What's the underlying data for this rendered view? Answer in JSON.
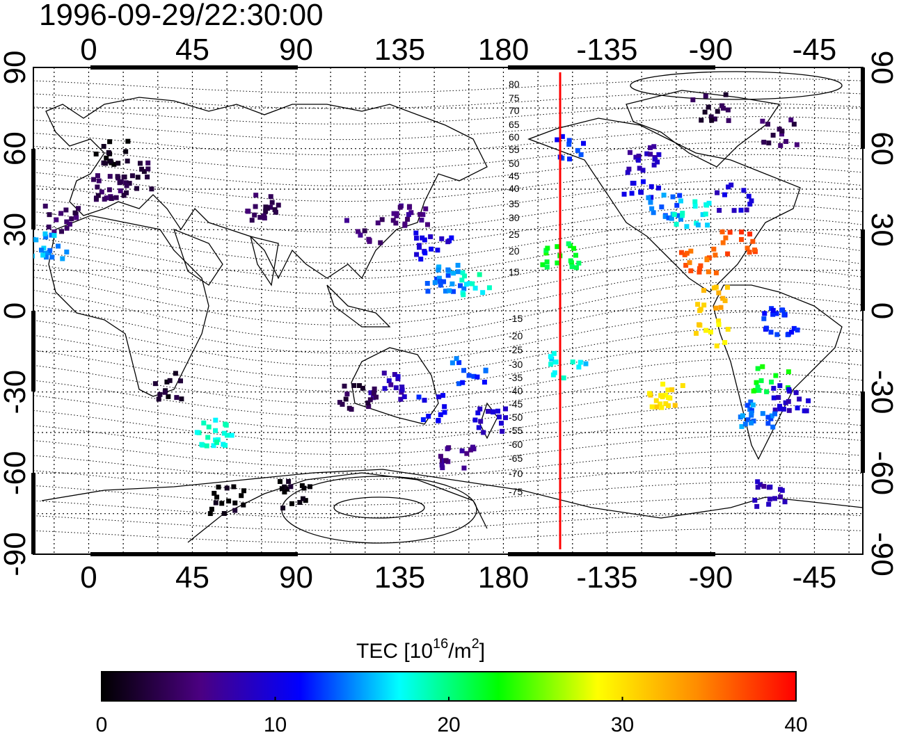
{
  "title": "1996-09-29/22:30:00",
  "map": {
    "type": "TEC map (equirectangular world)",
    "top_lon_ticks": [
      "0",
      "45",
      "90",
      "135",
      "180",
      "-135",
      "-90",
      "-45"
    ],
    "bottom_lon_ticks": [
      "0",
      "45",
      "90",
      "135",
      "180",
      "-135",
      "-90",
      "-45"
    ],
    "left_lat_ticks": [
      "90",
      "60",
      "30",
      "0",
      "-30",
      "-60",
      "-90"
    ],
    "right_lat_ticks": [
      "90",
      "60",
      "30",
      "0",
      "-30",
      "-60",
      "-90"
    ],
    "magnetic_lat_labels": [
      "80",
      "75",
      "70",
      "65",
      "60",
      "55",
      "50",
      "45",
      "40",
      "35",
      "30",
      "25",
      "20",
      "15",
      "-15",
      "-20",
      "-25",
      "-30",
      "-35",
      "-40",
      "-45",
      "-50",
      "-55",
      "-60",
      "-65",
      "-70",
      "-75"
    ],
    "terminator_line_color": "#ff0000",
    "lon_range": [
      -24,
      336
    ],
    "lat_range": [
      -90,
      90
    ]
  },
  "colorbar": {
    "label": "TEC  [10",
    "label_sup": "16",
    "label_mid": "/m",
    "label_sup2": "2",
    "label_end": "]",
    "ticks": [
      "0",
      "10",
      "20",
      "30",
      "40"
    ],
    "range": [
      0,
      40
    ],
    "stops": [
      "#000000",
      "#4b0082",
      "#0000ff",
      "#00ffff",
      "#00ff00",
      "#ffff00",
      "#ff8c00",
      "#ff0000"
    ]
  },
  "tec_clusters": [
    {
      "lon": 10,
      "lat": 58,
      "tec": 1
    },
    {
      "lon": 20,
      "lat": 50,
      "tec": 3
    },
    {
      "lon": 10,
      "lat": 46,
      "tec": 4
    },
    {
      "lon": -12,
      "lat": 34,
      "tec": 4
    },
    {
      "lon": -17,
      "lat": 24,
      "tec": 15
    },
    {
      "lon": 75,
      "lat": 38,
      "tec": 4
    },
    {
      "lon": 120,
      "lat": 30,
      "tec": 5
    },
    {
      "lon": 140,
      "lat": 36,
      "tec": 6
    },
    {
      "lon": 150,
      "lat": 24,
      "tec": 10
    },
    {
      "lon": 155,
      "lat": 12,
      "tec": 14
    },
    {
      "lon": 168,
      "lat": 10,
      "tec": 18
    },
    {
      "lon": 205,
      "lat": 20,
      "tec": 22
    },
    {
      "lon": 210,
      "lat": 60,
      "tec": 12
    },
    {
      "lon": 240,
      "lat": 56,
      "tec": 8
    },
    {
      "lon": 240,
      "lat": 46,
      "tec": 11
    },
    {
      "lon": 250,
      "lat": 38,
      "tec": 14
    },
    {
      "lon": 262,
      "lat": 36,
      "tec": 17
    },
    {
      "lon": 280,
      "lat": 42,
      "tec": 9
    },
    {
      "lon": 282,
      "lat": 26,
      "tec": 37
    },
    {
      "lon": 265,
      "lat": 18,
      "tec": 36
    },
    {
      "lon": 272,
      "lat": 4,
      "tec": 32
    },
    {
      "lon": 270,
      "lat": -8,
      "tec": 30
    },
    {
      "lon": 300,
      "lat": -4,
      "tec": 12
    },
    {
      "lon": 296,
      "lat": -25,
      "tec": 22
    },
    {
      "lon": 305,
      "lat": -32,
      "tec": 9
    },
    {
      "lon": 290,
      "lat": -38,
      "tec": 14
    },
    {
      "lon": 250,
      "lat": -32,
      "tec": 30
    },
    {
      "lon": 208,
      "lat": -20,
      "tec": 17
    },
    {
      "lon": 165,
      "lat": -22,
      "tec": 13
    },
    {
      "lon": 175,
      "lat": -40,
      "tec": 9
    },
    {
      "lon": 150,
      "lat": -36,
      "tec": 11
    },
    {
      "lon": 130,
      "lat": -28,
      "tec": 8
    },
    {
      "lon": 117,
      "lat": -32,
      "tec": 3
    },
    {
      "lon": 160,
      "lat": -55,
      "tec": 6
    },
    {
      "lon": 35,
      "lat": -28,
      "tec": 2
    },
    {
      "lon": 55,
      "lat": -45,
      "tec": 18
    },
    {
      "lon": 60,
      "lat": -70,
      "tec": 1
    },
    {
      "lon": 90,
      "lat": -68,
      "tec": 1
    },
    {
      "lon": 295,
      "lat": -68,
      "tec": 8
    },
    {
      "lon": 270,
      "lat": 75,
      "tec": 3
    },
    {
      "lon": 300,
      "lat": 66,
      "tec": 4
    }
  ]
}
